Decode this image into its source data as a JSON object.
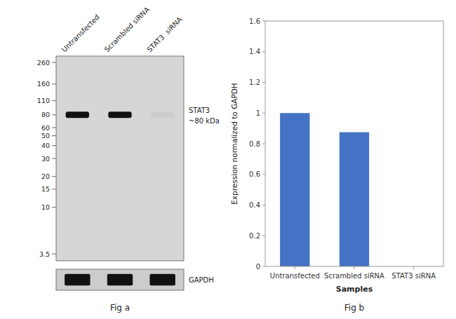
{
  "chart_data": [
    {
      "type": "western_blot",
      "title": "Fig a",
      "categories": [
        "Untransfected",
        "Scrambled siRNA",
        "STAT3  siRNA"
      ],
      "log": "y",
      "ylim": [
        3,
        300
      ],
      "yticks": [
        260,
        160,
        110,
        80,
        60,
        50,
        40,
        30,
        20,
        15,
        10,
        3.5
      ],
      "annotations": [
        "STAT3",
        "~80 kDa",
        "GAPDH"
      ],
      "color": "#111111"
    },
    {
      "type": "bar",
      "title": "Fig b",
      "categories": [
        "Untransfected",
        "Scrambled siRNA",
        "STAT3 siRNA"
      ],
      "values": [
        1.0,
        0.875,
        0.0
      ],
      "color": "#4472c4",
      "xlabel": "Samples",
      "ylabel": "Expression normalized to GAPDH",
      "ylim": [
        0,
        1.6
      ],
      "yticks": [
        0,
        0.2,
        0.4,
        0.6,
        0.8,
        1.0,
        1.2,
        1.4,
        1.6
      ],
      "grid": false
    }
  ]
}
